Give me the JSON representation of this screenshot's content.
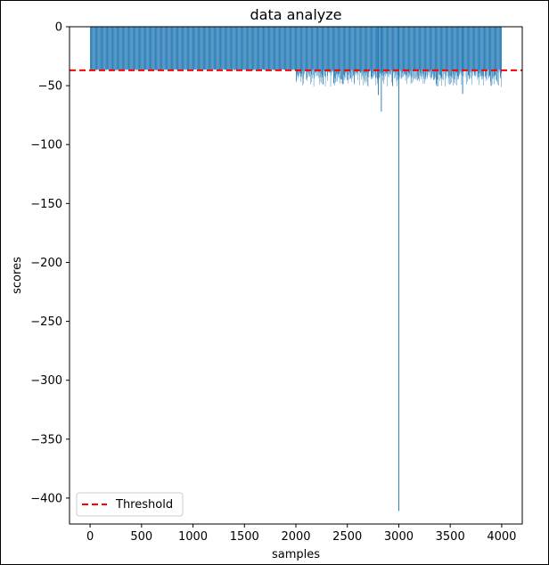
{
  "chart_data": {
    "type": "bar",
    "title": "data analyze",
    "xlabel": "samples",
    "ylabel": "scores",
    "xlim": [
      -200,
      4200
    ],
    "ylim": [
      -422,
      0
    ],
    "x_ticks": [
      0,
      500,
      1000,
      1500,
      2000,
      2500,
      3000,
      3500,
      4000
    ],
    "x_tick_labels": [
      "0",
      "500",
      "1000",
      "1500",
      "2000",
      "2500",
      "3000",
      "3500",
      "4000"
    ],
    "y_ticks": [
      0,
      -50,
      -100,
      -150,
      -200,
      -250,
      -300,
      -350,
      -400
    ],
    "y_tick_labels": [
      "0",
      "−50",
      "−100",
      "−150",
      "−200",
      "−250",
      "−300",
      "−350",
      "−400"
    ],
    "bar_color": "#1f77b4",
    "sample_range": [
      0,
      3999
    ],
    "typical_score_range_first_half": [
      -37,
      -36
    ],
    "typical_score_range_second_half": [
      -45,
      -36
    ],
    "notable_bars": [
      {
        "x": 2800,
        "value": -58
      },
      {
        "x": 2830,
        "value": -72
      },
      {
        "x": 3000,
        "value": -411
      },
      {
        "x": 3620,
        "value": -57
      }
    ],
    "threshold": {
      "value": -37,
      "label": "Threshold",
      "color": "#ff0000",
      "style": "dashed"
    },
    "legend": {
      "position": "lower-left",
      "entries": [
        "Threshold"
      ]
    },
    "grid": false
  }
}
